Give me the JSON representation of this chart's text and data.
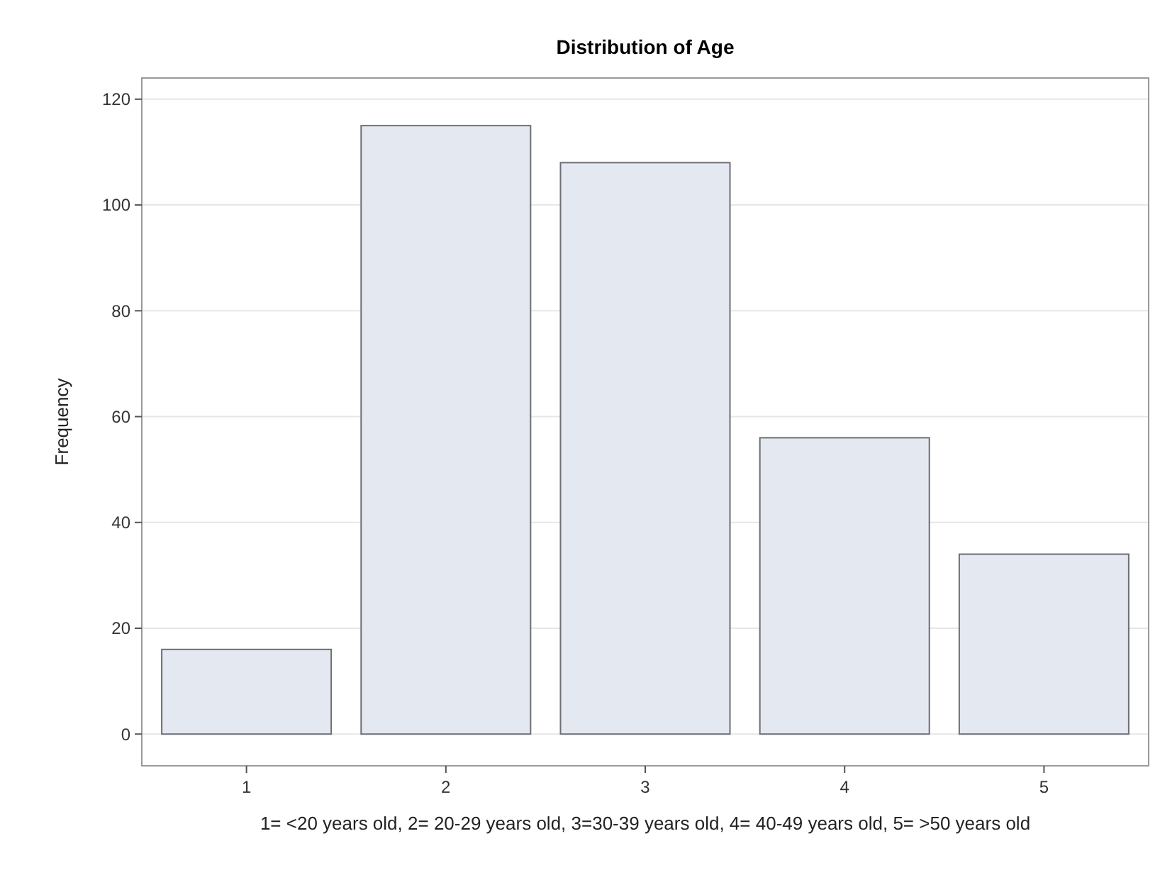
{
  "chart_data": {
    "type": "bar",
    "title": "Distribution of Age",
    "xlabel": "1= <20 years old, 2= 20-29 years old, 3=30-39 years old, 4= 40-49 years old, 5= >50 years old",
    "ylabel": "Frequency",
    "categories": [
      "1",
      "2",
      "3",
      "4",
      "5"
    ],
    "values": [
      16,
      115,
      108,
      56,
      34
    ],
    "color": "#e3e8f1",
    "ylim": [
      -6,
      124
    ],
    "yticks": [
      0,
      20,
      40,
      60,
      80,
      100,
      120
    ],
    "grid": "y"
  }
}
